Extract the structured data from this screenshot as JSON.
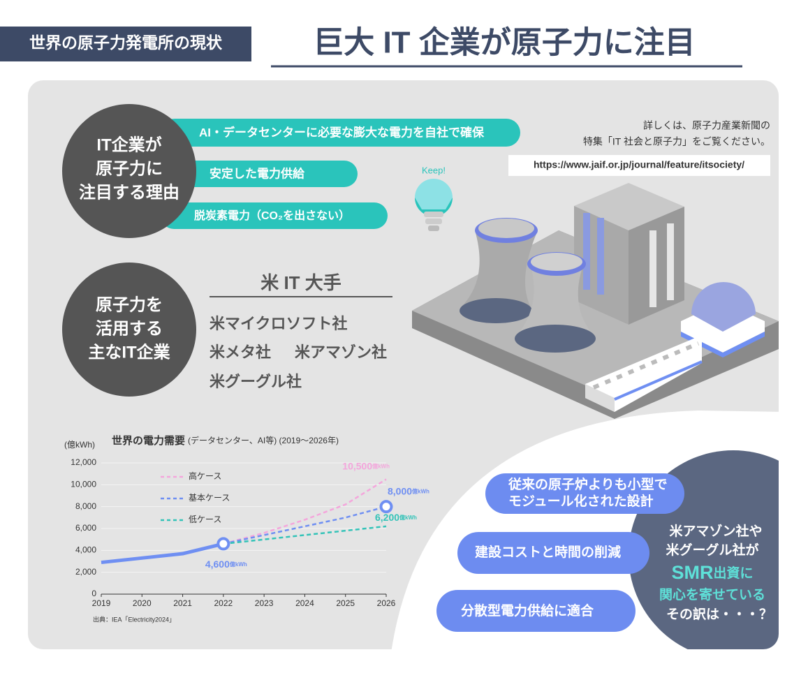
{
  "header": {
    "section_label": "世界の原子力発電所の現状",
    "title": "巨大 IT 企業が原子力に注目"
  },
  "reasons": {
    "heading": [
      "IT企業が",
      "原子力に",
      "注目する理由"
    ],
    "items": [
      "AI・データセンターに必要な膨大な電力を自社で確保",
      "安定した電力供給",
      "脱炭素電力（CO₂を出さない）"
    ]
  },
  "info": {
    "lines": [
      "詳しくは、原子力産業新聞の",
      "特集「IT 社会と原子力」をご覧ください。"
    ],
    "url": "https://www.jaif.or.jp/journal/feature/itsociety/"
  },
  "keep_label": "Keep!",
  "companies": {
    "heading": [
      "原子力を",
      "活用する",
      "主なIT企業"
    ],
    "group_title": "米 IT 大手",
    "names": [
      "米マイクロソフト社",
      "米メタ社",
      "米アマゾン社",
      "米グーグル社"
    ]
  },
  "chart_data": {
    "type": "line",
    "title": "世界の電力需要",
    "subtitle": "(データセンター、AI等) (2019～2026年)",
    "y_label": "(億kWh)",
    "value_unit": "億kWh",
    "source": "出典：IEA「Electricity2024」",
    "x": [
      2019,
      2020,
      2021,
      2022,
      2023,
      2024,
      2025,
      2026
    ],
    "xlim": [
      2019,
      2026
    ],
    "xticks": [
      2019,
      2020,
      2021,
      2022,
      2023,
      2024,
      2025,
      2026
    ],
    "ylim": [
      0,
      12000
    ],
    "yticks": [
      0,
      {
        "value": 2000,
        "label": "2,000"
      },
      {
        "value": 4000,
        "label": "4,000"
      },
      {
        "value": 6000,
        "label": "6,000"
      },
      {
        "value": 8000,
        "label": "8,000"
      },
      {
        "value": 10000,
        "label": "10,000"
      },
      {
        "value": 12000,
        "label": "12,000"
      }
    ],
    "grid": true,
    "series": [
      {
        "name": "高ケース",
        "color": "#f4a6dc",
        "line_style": "dashed",
        "markers": false,
        "values": [
          null,
          null,
          null,
          4600,
          5600,
          6800,
          8200,
          10500
        ],
        "value_labels": [
          null,
          null,
          null,
          null,
          null,
          null,
          null,
          "10,500"
        ]
      },
      {
        "name": "基本ケース",
        "color": "#6f8ff2",
        "line_style": "dashed",
        "markers": true,
        "values": [
          null,
          null,
          null,
          4600,
          5400,
          6200,
          7000,
          8000
        ],
        "value_labels": [
          null,
          null,
          null,
          null,
          null,
          null,
          null,
          "8,000"
        ]
      },
      {
        "name": "低ケース",
        "color": "#34c3b8",
        "line_style": "dashed",
        "markers": false,
        "values": [
          null,
          null,
          null,
          4600,
          5000,
          5400,
          5800,
          6200
        ],
        "value_labels": [
          null,
          null,
          null,
          null,
          null,
          null,
          null,
          "6,200"
        ]
      },
      {
        "color": "#6f8ff2",
        "line_style": "solid",
        "markers": true,
        "values": [
          2900,
          3300,
          3700,
          4600,
          null,
          null,
          null,
          null
        ],
        "value_labels": [
          null,
          null,
          null,
          "4,600",
          null,
          null,
          null,
          null
        ]
      }
    ]
  },
  "smr": {
    "features": [
      [
        "従来の原子炉よりも小型で",
        "モジュール化された設計"
      ],
      [
        "建設コストと時間の削減"
      ],
      [
        "分散型電力供給に適合"
      ]
    ],
    "conclusion": {
      "line1": "米アマゾン社や",
      "line2": "米グーグル社が",
      "highlight": "SMR",
      "line3_rest": "出資に",
      "line4": "関心を寄せている",
      "line5": "その訳は・・・？"
    }
  }
}
